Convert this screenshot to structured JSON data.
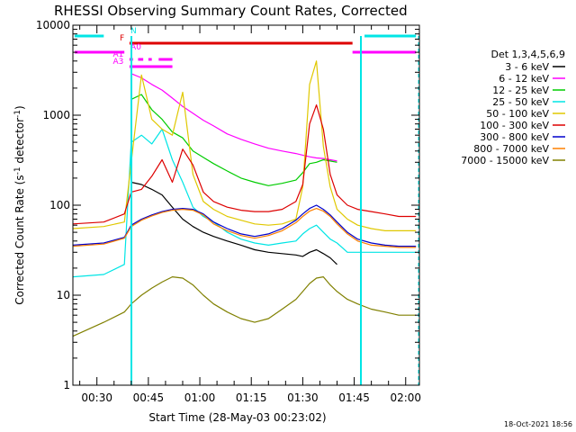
{
  "chart_data": {
    "type": "line",
    "title": "RHESSI Observing Summary Count Rates, Corrected",
    "xlabel": "Start Time (28-May-03 00:23:02)",
    "ylabel": "Corrected Count Rate (s",
    "ylabel_sup": "-1",
    "ylabel_tail": " detector",
    "ylabel_tail_sup": "-1",
    "ylabel_close": ")",
    "yscale": "log",
    "ylim": [
      1,
      10000
    ],
    "xlim_minutes": [
      23.0,
      124.0
    ],
    "x_ticks": [
      {
        "label": "00:30",
        "minutes": 30
      },
      {
        "label": "00:45",
        "minutes": 45
      },
      {
        "label": "01:00",
        "minutes": 60
      },
      {
        "label": "01:15",
        "minutes": 75
      },
      {
        "label": "01:30",
        "minutes": 90
      },
      {
        "label": "01:45",
        "minutes": 105
      },
      {
        "label": "02:00",
        "minutes": 120
      }
    ],
    "y_ticks": [
      {
        "label": "1",
        "value": 1
      },
      {
        "label": "10",
        "value": 10
      },
      {
        "label": "100",
        "value": 100
      },
      {
        "label": "1000",
        "value": 1000
      },
      {
        "label": "10000",
        "value": 10000
      }
    ],
    "legend_title": "Det 1,3,4,5,6,9",
    "timestamp": "18-Oct-2021 18:56",
    "x": [
      23,
      32,
      38,
      40,
      43,
      46,
      49,
      52,
      55,
      58,
      61,
      64,
      68,
      72,
      76,
      80,
      84,
      88,
      90,
      92,
      94,
      96,
      98,
      100,
      103,
      106,
      110,
      114,
      118,
      123
    ],
    "series": [
      {
        "name": "3 - 6 keV",
        "color": "#000000",
        "values": [
          null,
          null,
          null,
          180,
          170,
          150,
          130,
          95,
          70,
          58,
          50,
          45,
          40,
          36,
          32,
          30,
          29,
          28,
          27,
          30,
          32,
          29,
          26,
          22,
          null,
          null,
          null,
          null,
          null,
          null
        ]
      },
      {
        "name": "6 - 12 keV",
        "color": "#ff00ff",
        "values": [
          null,
          null,
          null,
          2900,
          2600,
          2200,
          1900,
          1550,
          1250,
          1050,
          880,
          760,
          620,
          540,
          480,
          430,
          400,
          375,
          360,
          345,
          335,
          330,
          320,
          310,
          null,
          null,
          null,
          null,
          null,
          null
        ]
      },
      {
        "name": "12 - 25 keV",
        "color": "#00cc00",
        "values": [
          null,
          null,
          null,
          1500,
          1700,
          1150,
          900,
          650,
          560,
          400,
          340,
          290,
          240,
          200,
          180,
          165,
          175,
          190,
          230,
          290,
          300,
          320,
          310,
          300,
          null,
          null,
          null,
          null,
          null,
          null
        ]
      },
      {
        "name": "25 - 50 keV",
        "color": "#00e5e5",
        "values": [
          16,
          17,
          22,
          500,
          600,
          480,
          700,
          320,
          180,
          95,
          75,
          65,
          50,
          42,
          38,
          36,
          38,
          40,
          48,
          55,
          60,
          50,
          42,
          38,
          30,
          30,
          30,
          30,
          30,
          30
        ]
      },
      {
        "name": "50 - 100 keV",
        "color": "#e0c800",
        "values": [
          55,
          58,
          65,
          300,
          2800,
          900,
          700,
          600,
          1800,
          220,
          110,
          90,
          75,
          68,
          62,
          60,
          62,
          70,
          160,
          2200,
          4000,
          450,
          160,
          90,
          70,
          60,
          55,
          52,
          52,
          52
        ]
      },
      {
        "name": "100 - 300 keV",
        "color": "#dd0000",
        "values": [
          62,
          65,
          80,
          140,
          150,
          210,
          320,
          180,
          420,
          280,
          140,
          110,
          95,
          88,
          85,
          85,
          90,
          110,
          170,
          800,
          1300,
          700,
          220,
          130,
          100,
          90,
          85,
          80,
          75,
          75
        ]
      },
      {
        "name": "300 - 800 keV",
        "color": "#0000cc",
        "values": [
          36,
          38,
          44,
          60,
          70,
          78,
          85,
          90,
          92,
          90,
          80,
          65,
          55,
          48,
          45,
          48,
          55,
          68,
          80,
          92,
          100,
          90,
          78,
          65,
          50,
          42,
          38,
          36,
          35,
          35
        ]
      },
      {
        "name": "800 - 7000 keV",
        "color": "#ff8000",
        "values": [
          35,
          37,
          43,
          58,
          68,
          76,
          83,
          88,
          90,
          88,
          78,
          62,
          52,
          46,
          43,
          46,
          52,
          64,
          75,
          86,
          92,
          86,
          75,
          62,
          48,
          40,
          36,
          35,
          34,
          34
        ]
      },
      {
        "name": "7000 - 15000 keV",
        "color": "#808000",
        "values": [
          3.5,
          5,
          6.5,
          8,
          10,
          12,
          14,
          16,
          15.5,
          13,
          10,
          8,
          6.5,
          5.5,
          5,
          5.5,
          7,
          9,
          11,
          13.5,
          15.5,
          16,
          13,
          11,
          9,
          8,
          7,
          6.5,
          6,
          6
        ]
      }
    ],
    "flag_bars": [
      {
        "label": "N",
        "color": "#00e5e5",
        "segments": [
          [
            23.5,
            32
          ],
          [
            108,
            123
          ]
        ]
      },
      {
        "label": "F",
        "color": "#dd0000",
        "segments": [
          [
            39.5,
            104.5
          ]
        ]
      },
      {
        "label": "A0",
        "color": "#ff00ff",
        "segments": [
          [
            23.5,
            38
          ],
          [
            104.5,
            123
          ]
        ]
      },
      {
        "label": "A1",
        "color": "#ff00ff",
        "segments": [
          [
            39.5,
            40.5
          ],
          [
            42,
            43.5
          ],
          [
            45,
            46
          ],
          [
            48,
            52
          ]
        ]
      },
      {
        "label": "A3",
        "color": "#ff00ff",
        "segments": [
          [
            39.5,
            52
          ]
        ]
      }
    ]
  }
}
